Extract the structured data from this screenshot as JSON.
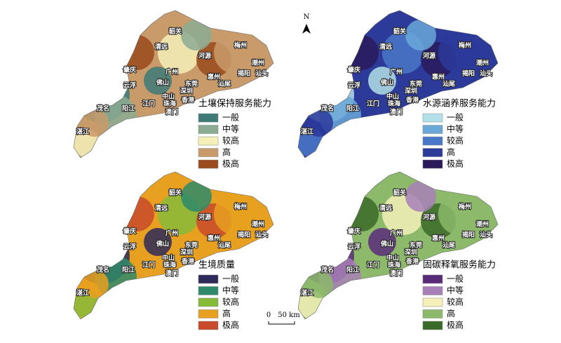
{
  "north": "N",
  "scale": {
    "zero": "0",
    "length": "50 km"
  },
  "cities": [
    "韶关",
    "清远",
    "河源",
    "梅州",
    "潮州",
    "揭阳",
    "汕头",
    "肇庆",
    "广州",
    "惠州",
    "佛山",
    "东莞",
    "云浮",
    "中山",
    "深圳",
    "汕尾",
    "江门",
    "珠海",
    "香港",
    "澳门",
    "茂名",
    "阳江",
    "湛江"
  ],
  "panels": [
    {
      "title": "土壤保持服务能力",
      "legend": [
        {
          "label": "一般",
          "color": "#3d7a78"
        },
        {
          "label": "中等",
          "color": "#8cab93"
        },
        {
          "label": "较高",
          "color": "#f5f0b8"
        },
        {
          "label": "高",
          "color": "#c99a6a"
        },
        {
          "label": "极高",
          "color": "#9a4a1c"
        }
      ]
    },
    {
      "title": "水源涵养服务能力",
      "legend": [
        {
          "label": "一般",
          "color": "#b3e0e8"
        },
        {
          "label": "中等",
          "color": "#6aa8d8"
        },
        {
          "label": "较高",
          "color": "#4a78c8"
        },
        {
          "label": "高",
          "color": "#2c3a9a"
        },
        {
          "label": "极高",
          "color": "#2a1a5a"
        }
      ]
    },
    {
      "title": "生境质量",
      "legend": [
        {
          "label": "一般",
          "color": "#2d2a5a"
        },
        {
          "label": "中等",
          "color": "#2e8a6a"
        },
        {
          "label": "较高",
          "color": "#86bb3a"
        },
        {
          "label": "高",
          "color": "#e8a020"
        },
        {
          "label": "极高",
          "color": "#c84a2a"
        }
      ]
    },
    {
      "title": "固碳释氧服务能力",
      "legend": [
        {
          "label": "一般",
          "color": "#5a2a7a"
        },
        {
          "label": "中等",
          "color": "#a880b8"
        },
        {
          "label": "较高",
          "color": "#f5f0b8"
        },
        {
          "label": "高",
          "color": "#8cba6a"
        },
        {
          "label": "极高",
          "color": "#3a6a28"
        }
      ]
    }
  ]
}
